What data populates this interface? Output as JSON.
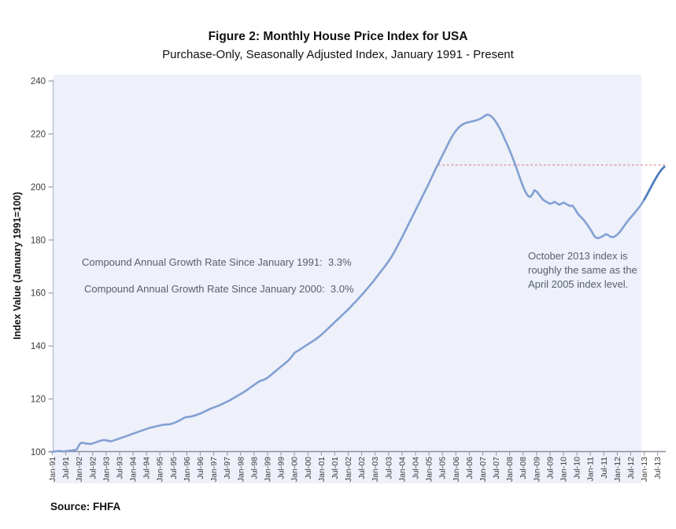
{
  "title": "Figure 2: Monthly House Price Index for USA",
  "subtitle": "Purchase-Only, Seasonally Adjusted Index, January 1991 - Present",
  "source_label": "Source: FHFA",
  "annotations": {
    "cagr_1991": "Compound Annual Growth Rate Since January 1991:  3.3%",
    "cagr_2000": "Compound Annual Growth Rate Since January 2000:  3.0%",
    "october_note": "October 2013 index is\nroughly the same as the\nApril 2005 index level."
  },
  "colors": {
    "line_main": "#82a0d2",
    "line_recent": "#4e7dbd",
    "reference_dashed": "#d99694",
    "plot_background": "#eef0fa",
    "x_axis": "#8e8e9a",
    "y_axis": "#bcc0d4",
    "tick": "#9a9aa6",
    "tick_text": "#3d3d3d"
  },
  "chart_data": {
    "type": "line",
    "title": "Figure 2: Monthly House Price Index for USA",
    "subtitle": "Purchase-Only, Seasonally Adjusted Index, January 1991 - Present",
    "xlabel": "",
    "ylabel": "Index Value (January 1991=100)",
    "ylim": [
      100,
      240
    ],
    "yticks": [
      100,
      120,
      140,
      160,
      180,
      200,
      220,
      240
    ],
    "grid": false,
    "legend": "none",
    "x_start": "Jan-1991",
    "x_end": "Oct-2013",
    "frequency": "monthly",
    "xtick_labels": [
      "Jan-91",
      "Jul-91",
      "Jan-92",
      "Jul-92",
      "Jan-93",
      "Jul-93",
      "Jan-94",
      "Jul-94",
      "Jan-95",
      "Jul-95",
      "Jan-96",
      "Jul-96",
      "Jan-97",
      "Jul-97",
      "Jan-98",
      "Jul-98",
      "Jan-99",
      "Jul-99",
      "Jan-00",
      "Jul-00",
      "Jan-01",
      "Jul-01",
      "Jan-02",
      "Jul-02",
      "Jan-03",
      "Jul-03",
      "Jan-04",
      "Jul-04",
      "Jan-05",
      "Jul-05",
      "Jan-06",
      "Jul-06",
      "Jan-07",
      "Jul-07",
      "Jan-08",
      "Jul-08",
      "Jan-09",
      "Jul-09",
      "Jan-10",
      "Jul-10",
      "Jan-11",
      "Jul-11",
      "Jan-12",
      "Jul-12",
      "Jan-13",
      "Jul-13"
    ],
    "series": [
      {
        "name": "Monthly House Price Index (purchase-only, SA)",
        "values": [
          100.0,
          100.2,
          100.3,
          100.4,
          100.3,
          100.2,
          100.3,
          100.4,
          100.5,
          100.6,
          100.8,
          101.0,
          102.8,
          103.5,
          103.4,
          103.2,
          103.1,
          103.0,
          103.2,
          103.5,
          103.8,
          104.1,
          104.4,
          104.5,
          104.4,
          104.2,
          104.0,
          104.2,
          104.5,
          104.8,
          105.1,
          105.4,
          105.7,
          106.0,
          106.3,
          106.6,
          106.9,
          107.2,
          107.5,
          107.8,
          108.1,
          108.4,
          108.7,
          109.0,
          109.2,
          109.4,
          109.6,
          109.8,
          110.0,
          110.2,
          110.3,
          110.4,
          110.4,
          110.6,
          110.9,
          111.2,
          111.6,
          112.0,
          112.5,
          113.0,
          113.2,
          113.3,
          113.4,
          113.6,
          113.9,
          114.2,
          114.5,
          114.9,
          115.3,
          115.7,
          116.1,
          116.5,
          116.8,
          117.1,
          117.4,
          117.8,
          118.2,
          118.6,
          119.0,
          119.4,
          119.9,
          120.4,
          120.9,
          121.4,
          121.9,
          122.4,
          122.9,
          123.5,
          124.1,
          124.7,
          125.3,
          125.9,
          126.5,
          126.9,
          127.1,
          127.5,
          128.0,
          128.7,
          129.4,
          130.1,
          130.8,
          131.5,
          132.2,
          132.9,
          133.6,
          134.3,
          135.2,
          136.2,
          137.4,
          137.9,
          138.4,
          139.0,
          139.5,
          140.1,
          140.6,
          141.2,
          141.7,
          142.3,
          142.9,
          143.5,
          144.2,
          145.0,
          145.8,
          146.6,
          147.4,
          148.2,
          149.0,
          149.8,
          150.6,
          151.4,
          152.2,
          153.0,
          153.8,
          154.7,
          155.6,
          156.5,
          157.4,
          158.3,
          159.2,
          160.2,
          161.2,
          162.2,
          163.2,
          164.2,
          165.3,
          166.4,
          167.5,
          168.6,
          169.7,
          170.8,
          172.0,
          173.3,
          174.7,
          176.2,
          177.8,
          179.4,
          181.0,
          182.7,
          184.4,
          186.1,
          187.8,
          189.5,
          191.2,
          192.9,
          194.6,
          196.3,
          198.0,
          199.7,
          201.4,
          203.2,
          205.0,
          206.8,
          208.5,
          210.2,
          211.9,
          213.6,
          215.3,
          217.0,
          218.6,
          220.0,
          221.2,
          222.2,
          223.0,
          223.6,
          224.0,
          224.3,
          224.5,
          224.7,
          224.9,
          225.1,
          225.4,
          225.8,
          226.3,
          226.9,
          227.3,
          227.1,
          226.5,
          225.6,
          224.4,
          223.0,
          221.4,
          219.6,
          217.7,
          215.8,
          213.8,
          211.7,
          209.5,
          207.2,
          204.8,
          202.4,
          200.1,
          198.2,
          196.8,
          196.2,
          197.0,
          198.8,
          198.3,
          197.3,
          196.1,
          195.1,
          194.6,
          194.1,
          193.6,
          193.9,
          194.4,
          193.9,
          193.3,
          193.6,
          194.1,
          193.7,
          193.2,
          192.8,
          193.0,
          191.9,
          190.4,
          189.3,
          188.5,
          187.6,
          186.5,
          185.3,
          184.0,
          182.6,
          181.2,
          180.7,
          180.8,
          181.2,
          181.7,
          182.2,
          181.8,
          181.2,
          181.0,
          181.4,
          182.0,
          182.9,
          184.0,
          185.2,
          186.4,
          187.5,
          188.5,
          189.5,
          190.5,
          191.5,
          192.6,
          193.8,
          195.2,
          196.7,
          198.3,
          199.9,
          201.5,
          203.0,
          204.4,
          205.7,
          206.8,
          207.6
        ]
      }
    ],
    "recent_segment_start_index": 264,
    "reference_line": {
      "level": 208.3,
      "start_month_index": 172,
      "style": "dashed",
      "note": "April 2005 index level carried to October 2013"
    },
    "annotations": [
      "Compound Annual Growth Rate Since January 1991:  3.3%",
      "Compound Annual Growth Rate Since January 2000:  3.0%",
      "October 2013 index is roughly the same as the April 2005 index level."
    ]
  }
}
